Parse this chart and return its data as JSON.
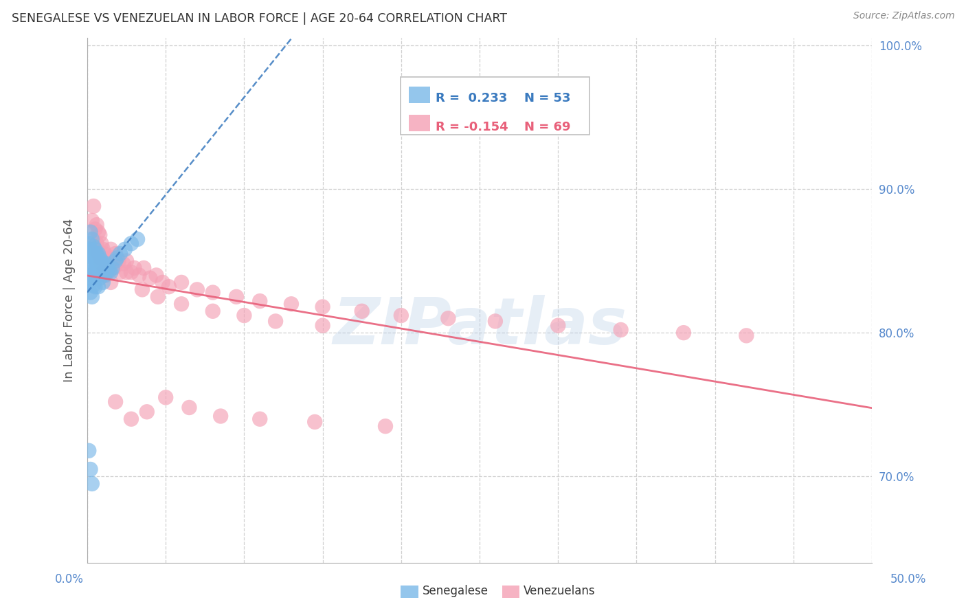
{
  "title": "SENEGALESE VS VENEZUELAN IN LABOR FORCE | AGE 20-64 CORRELATION CHART",
  "source": "Source: ZipAtlas.com",
  "ylabel": "In Labor Force | Age 20-64",
  "legend_label1": "Senegalese",
  "legend_label2": "Venezuelans",
  "R1": 0.233,
  "N1": 53,
  "R2": -0.154,
  "N2": 69,
  "color_blue": "#7ab8e8",
  "color_pink": "#f4a0b5",
  "color_blue_line": "#3a7abf",
  "color_pink_line": "#e8607a",
  "xlim": [
    0.0,
    0.5
  ],
  "ylim": [
    0.64,
    1.005
  ],
  "yticks": [
    0.7,
    0.8,
    0.9,
    1.0
  ],
  "ytick_labels": [
    "70.0%",
    "80.0%",
    "90.0%",
    "100.0%"
  ],
  "xticks": [
    0.0,
    0.05,
    0.1,
    0.15,
    0.2,
    0.25,
    0.3,
    0.35,
    0.4,
    0.45,
    0.5
  ],
  "watermark": "ZIPatlas",
  "background_color": "#ffffff",
  "grid_color": "#d0d0d0",
  "title_color": "#333333",
  "tick_label_color": "#5588cc",
  "senegalese_x": [
    0.001,
    0.001,
    0.001,
    0.001,
    0.002,
    0.002,
    0.002,
    0.002,
    0.003,
    0.003,
    0.003,
    0.003,
    0.003,
    0.004,
    0.004,
    0.004,
    0.004,
    0.005,
    0.005,
    0.005,
    0.005,
    0.006,
    0.006,
    0.006,
    0.007,
    0.007,
    0.007,
    0.007,
    0.008,
    0.008,
    0.008,
    0.009,
    0.009,
    0.01,
    0.01,
    0.01,
    0.011,
    0.011,
    0.012,
    0.012,
    0.013,
    0.014,
    0.015,
    0.016,
    0.018,
    0.019,
    0.021,
    0.024,
    0.028,
    0.032,
    0.001,
    0.002,
    0.003
  ],
  "senegalese_y": [
    0.855,
    0.862,
    0.845,
    0.835,
    0.87,
    0.858,
    0.84,
    0.828,
    0.865,
    0.855,
    0.848,
    0.838,
    0.825,
    0.86,
    0.852,
    0.843,
    0.833,
    0.858,
    0.85,
    0.842,
    0.832,
    0.855,
    0.848,
    0.84,
    0.855,
    0.848,
    0.84,
    0.832,
    0.852,
    0.845,
    0.838,
    0.85,
    0.842,
    0.848,
    0.842,
    0.835,
    0.846,
    0.84,
    0.848,
    0.842,
    0.845,
    0.843,
    0.842,
    0.845,
    0.85,
    0.852,
    0.855,
    0.858,
    0.862,
    0.865,
    0.718,
    0.705,
    0.695
  ],
  "venezuelan_x": [
    0.003,
    0.004,
    0.004,
    0.005,
    0.005,
    0.006,
    0.006,
    0.007,
    0.007,
    0.008,
    0.008,
    0.009,
    0.009,
    0.01,
    0.01,
    0.011,
    0.012,
    0.012,
    0.013,
    0.014,
    0.015,
    0.016,
    0.017,
    0.018,
    0.02,
    0.021,
    0.023,
    0.025,
    0.028,
    0.03,
    0.033,
    0.036,
    0.04,
    0.044,
    0.048,
    0.052,
    0.06,
    0.07,
    0.08,
    0.095,
    0.11,
    0.13,
    0.15,
    0.175,
    0.2,
    0.23,
    0.26,
    0.3,
    0.34,
    0.38,
    0.42,
    0.015,
    0.025,
    0.035,
    0.045,
    0.06,
    0.08,
    0.1,
    0.12,
    0.15,
    0.018,
    0.028,
    0.038,
    0.05,
    0.065,
    0.085,
    0.11,
    0.145,
    0.19
  ],
  "venezuelan_y": [
    0.878,
    0.865,
    0.888,
    0.872,
    0.858,
    0.875,
    0.862,
    0.87,
    0.855,
    0.868,
    0.852,
    0.862,
    0.848,
    0.858,
    0.842,
    0.855,
    0.852,
    0.84,
    0.848,
    0.845,
    0.858,
    0.852,
    0.845,
    0.855,
    0.85,
    0.842,
    0.848,
    0.85,
    0.842,
    0.845,
    0.84,
    0.845,
    0.838,
    0.84,
    0.835,
    0.832,
    0.835,
    0.83,
    0.828,
    0.825,
    0.822,
    0.82,
    0.818,
    0.815,
    0.812,
    0.81,
    0.808,
    0.805,
    0.802,
    0.8,
    0.798,
    0.835,
    0.842,
    0.83,
    0.825,
    0.82,
    0.815,
    0.812,
    0.808,
    0.805,
    0.752,
    0.74,
    0.745,
    0.755,
    0.748,
    0.742,
    0.74,
    0.738,
    0.735
  ]
}
